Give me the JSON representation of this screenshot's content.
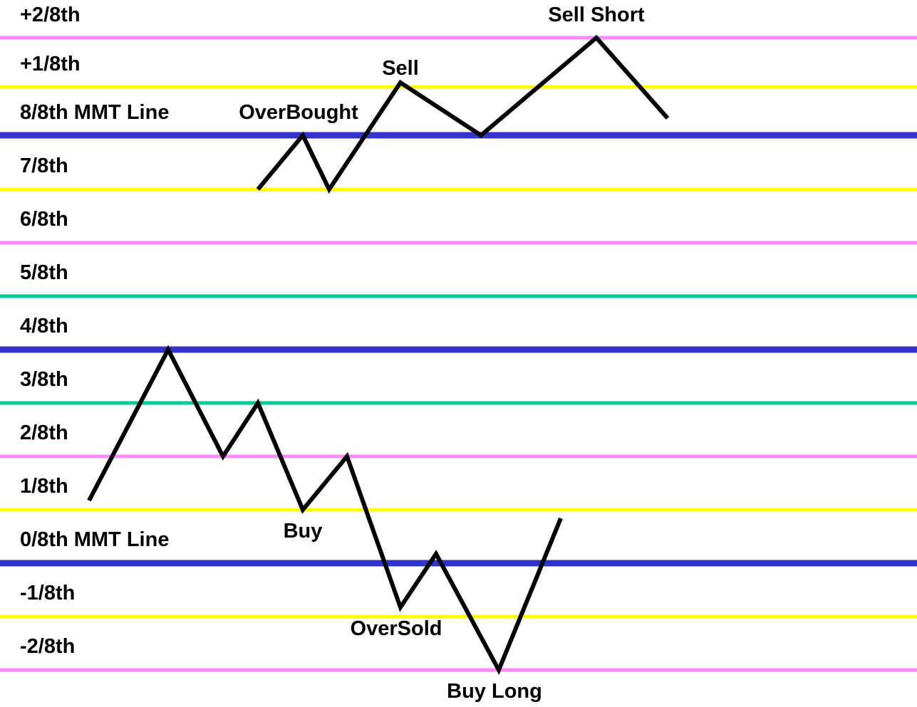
{
  "levels": [
    {
      "label": "+2/8th",
      "color": "#ff88ff"
    },
    {
      "label": "+1/8th",
      "color": "#ffff00"
    },
    {
      "label": "8/8th MMT Line",
      "color": "#3333cc"
    },
    {
      "label": "7/8th",
      "color": "#ffff00"
    },
    {
      "label": "6/8th",
      "color": "#ff88ff"
    },
    {
      "label": "5/8th",
      "color": "#00cc99"
    },
    {
      "label": "4/8th",
      "color": "#3333cc"
    },
    {
      "label": "3/8th",
      "color": "#00cc99"
    },
    {
      "label": "2/8th",
      "color": "#ff88ff"
    },
    {
      "label": "1/8th",
      "color": "#ffff00"
    },
    {
      "label": "0/8th MMT Line",
      "color": "#3333cc"
    },
    {
      "label": "-1/8th",
      "color": "#ffff00"
    },
    {
      "label": "-2/8th",
      "color": "#ff88ff"
    }
  ],
  "annotations": {
    "sell_short": "Sell Short",
    "sell": "Sell",
    "overbought": "OverBought",
    "buy": "Buy",
    "oversold": "OverSold",
    "buy_long": "Buy Long"
  },
  "colors": {
    "price_line": "#000000",
    "background": "#ffffff"
  }
}
